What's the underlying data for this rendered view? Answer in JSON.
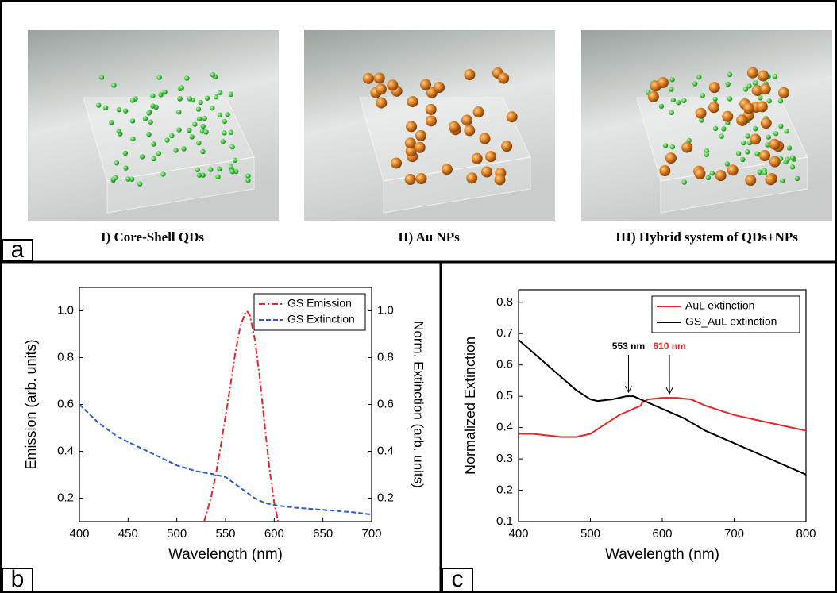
{
  "panel_labels": [
    "a",
    "b",
    "c"
  ],
  "images": [
    {
      "caption": "I) Core-Shell QDs"
    },
    {
      "caption": "II) Au NPs"
    },
    {
      "caption": "III) Hybrid system of QDs+NPs"
    }
  ],
  "chart_data": [
    {
      "type": "line",
      "xlabel": "Wavelength (nm)",
      "ylabel": "Emission (arb. units)",
      "y2label": "Norm. Extinction (arb. units)",
      "xlim": [
        400,
        700
      ],
      "xticks": [
        400,
        450,
        500,
        550,
        600,
        650,
        700
      ],
      "ylim": [
        0.1,
        1.1
      ],
      "yticks": [
        0.2,
        0.4,
        0.6,
        0.8,
        {
          "value": 1,
          "label": "1.0"
        }
      ],
      "y2lim": [
        0.1,
        1.1
      ],
      "y2ticks": [
        0.2,
        0.4,
        0.6,
        0.8,
        {
          "value": 1,
          "label": "1.0"
        }
      ],
      "legend": "upper right",
      "series": [
        {
          "name": "GS Emission",
          "color": "#e8262a",
          "style": "dashdot",
          "x": [
            528,
            535,
            540,
            545,
            550,
            555,
            560,
            565,
            570,
            572,
            575,
            580,
            585,
            590,
            595,
            600,
            604
          ],
          "values": [
            0.1,
            0.2,
            0.3,
            0.42,
            0.55,
            0.68,
            0.82,
            0.93,
            0.99,
            1.0,
            0.98,
            0.88,
            0.72,
            0.52,
            0.33,
            0.18,
            0.1
          ]
        },
        {
          "name": "GS Extinction",
          "color": "#2a5cc4",
          "style": "dashed",
          "axis": "y2",
          "x": [
            400,
            420,
            440,
            460,
            480,
            500,
            520,
            540,
            550,
            560,
            570,
            580,
            590,
            600,
            620,
            650,
            680,
            700
          ],
          "values": [
            0.6,
            0.52,
            0.46,
            0.42,
            0.38,
            0.34,
            0.315,
            0.3,
            0.29,
            0.26,
            0.23,
            0.2,
            0.18,
            0.17,
            0.16,
            0.15,
            0.14,
            0.13
          ]
        }
      ]
    },
    {
      "type": "line",
      "xlabel": "Wavelength (nm)",
      "ylabel": "Normalized Extinction",
      "xlim": [
        400,
        800
      ],
      "xticks": [
        400,
        500,
        600,
        700,
        800
      ],
      "ylim": [
        0.1,
        0.84
      ],
      "yticks": [
        0.1,
        0.2,
        0.3,
        0.4,
        0.5,
        0.6,
        0.7,
        0.8
      ],
      "legend": "upper right",
      "series": [
        {
          "name": "AuL extinction",
          "color": "#e8262a",
          "style": "solid",
          "x": [
            400,
            420,
            440,
            460,
            480,
            500,
            520,
            540,
            560,
            570,
            572,
            580,
            600,
            620,
            640,
            660,
            680,
            700,
            740,
            780,
            800
          ],
          "values": [
            0.38,
            0.38,
            0.375,
            0.37,
            0.37,
            0.38,
            0.41,
            0.44,
            0.46,
            0.47,
            0.48,
            0.49,
            0.495,
            0.495,
            0.49,
            0.47,
            0.455,
            0.44,
            0.42,
            0.4,
            0.39
          ]
        },
        {
          "name": "GS_AuL extinction",
          "color": "#000000",
          "style": "solid",
          "x": [
            400,
            420,
            440,
            460,
            480,
            500,
            510,
            530,
            550,
            560,
            580,
            600,
            630,
            660,
            700,
            740,
            780,
            800
          ],
          "values": [
            0.68,
            0.64,
            0.6,
            0.56,
            0.52,
            0.49,
            0.485,
            0.49,
            0.5,
            0.5,
            0.48,
            0.46,
            0.43,
            0.39,
            0.35,
            0.31,
            0.27,
            0.25
          ]
        }
      ],
      "annotations": [
        {
          "text": "553 nm",
          "x": 553,
          "y": 0.5,
          "color": "#000000"
        },
        {
          "text": "610 nm",
          "x": 610,
          "y": 0.495,
          "color": "#e8262a"
        }
      ]
    }
  ]
}
